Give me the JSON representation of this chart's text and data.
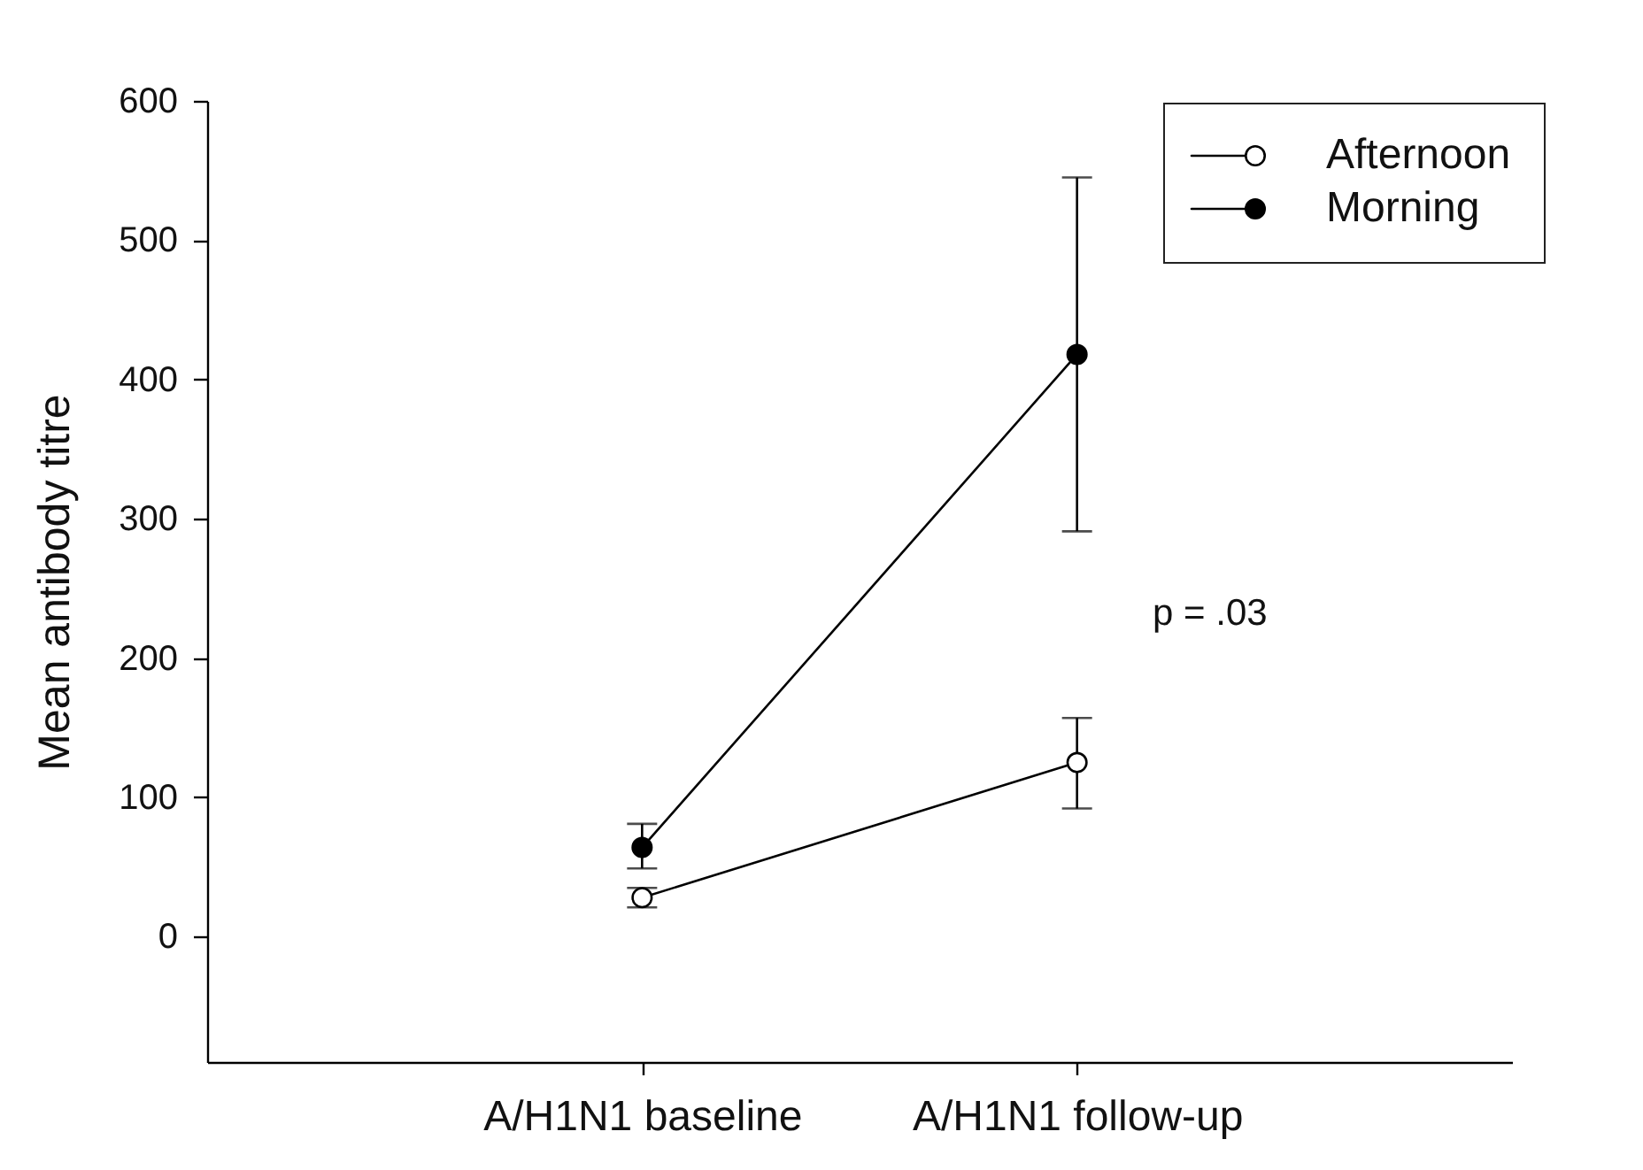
{
  "chart_data": {
    "type": "line",
    "ylabel": "Mean antibody titre",
    "categories": [
      "A/H1N1 baseline",
      "A/H1N1 follow-up"
    ],
    "series": [
      {
        "name": "Afternoon",
        "color": "#ffffff",
        "values": [
          28,
          125
        ],
        "errors": [
          [
            21,
            35
          ],
          [
            92,
            157
          ]
        ]
      },
      {
        "name": "Morning",
        "color": "#000000",
        "values": [
          64,
          418
        ],
        "errors": [
          [
            49,
            81
          ],
          [
            291,
            545
          ]
        ]
      }
    ],
    "ylim": [
      -90,
      600
    ],
    "yticks": [
      0,
      100,
      200,
      300,
      400,
      500,
      600
    ],
    "marker": "circle",
    "line_style": "solid",
    "legend": "top right",
    "grid": false,
    "annotations": [
      "p = .03"
    ]
  }
}
